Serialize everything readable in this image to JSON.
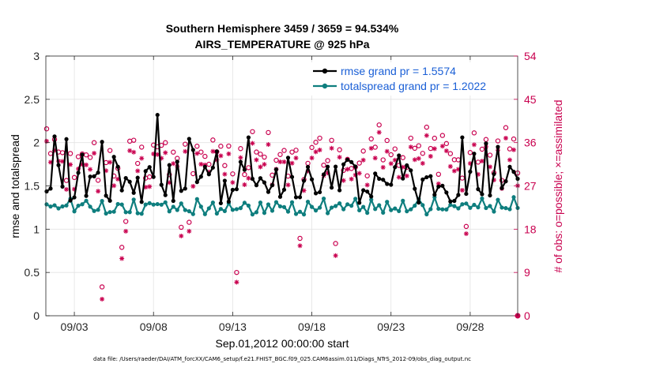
{
  "chart_data": {
    "type": "line",
    "title": "Southern Hemisphere 3459 / 3659 = 94.534%",
    "subtitle": "AIRS_TEMPERATURE @ 925 hPa",
    "xlabel": "Sep.01,2012 00:00:00 start",
    "ylabel_left": "rmse and totalspread",
    "ylabel_right": "# of obs: o=possible; ×=assimilated",
    "footer": "data file: /Users/raeder/DAI/ATM_forcXX/CAM6_setup/f.e21.FHIST_BGC.f09_025.CAM6assim.011/Diags_NTrS_2012-09/obs_diag_output.nc",
    "x_ticks": [
      "09/03",
      "09/08",
      "09/13",
      "09/18",
      "09/23",
      "09/28"
    ],
    "x_tick_days": [
      3,
      8,
      13,
      18,
      23,
      28
    ],
    "xlim_days": [
      1.2,
      31
    ],
    "y_left_ticks": [
      "0",
      "0.5",
      "1",
      "1.5",
      "2",
      "2.5",
      "3"
    ],
    "ylim_left": [
      0,
      3
    ],
    "y_right_ticks": [
      "0",
      "9",
      "18",
      "27",
      "36",
      "45",
      "54"
    ],
    "ylim_right": [
      0,
      54
    ],
    "grid": true,
    "legend_position": "top-right",
    "series": [
      {
        "name": "rmse grand pr = 1.5574",
        "color": "#000000",
        "marker": "circle"
      },
      {
        "name": "totalspread grand pr = 1.2022",
        "color": "#0e7e7e",
        "marker": "circle"
      },
      {
        "name": "obs possible",
        "color": "#c9004f",
        "marker": "o"
      },
      {
        "name": "obs assimilated",
        "color": "#c9004f",
        "marker": "*"
      }
    ]
  }
}
